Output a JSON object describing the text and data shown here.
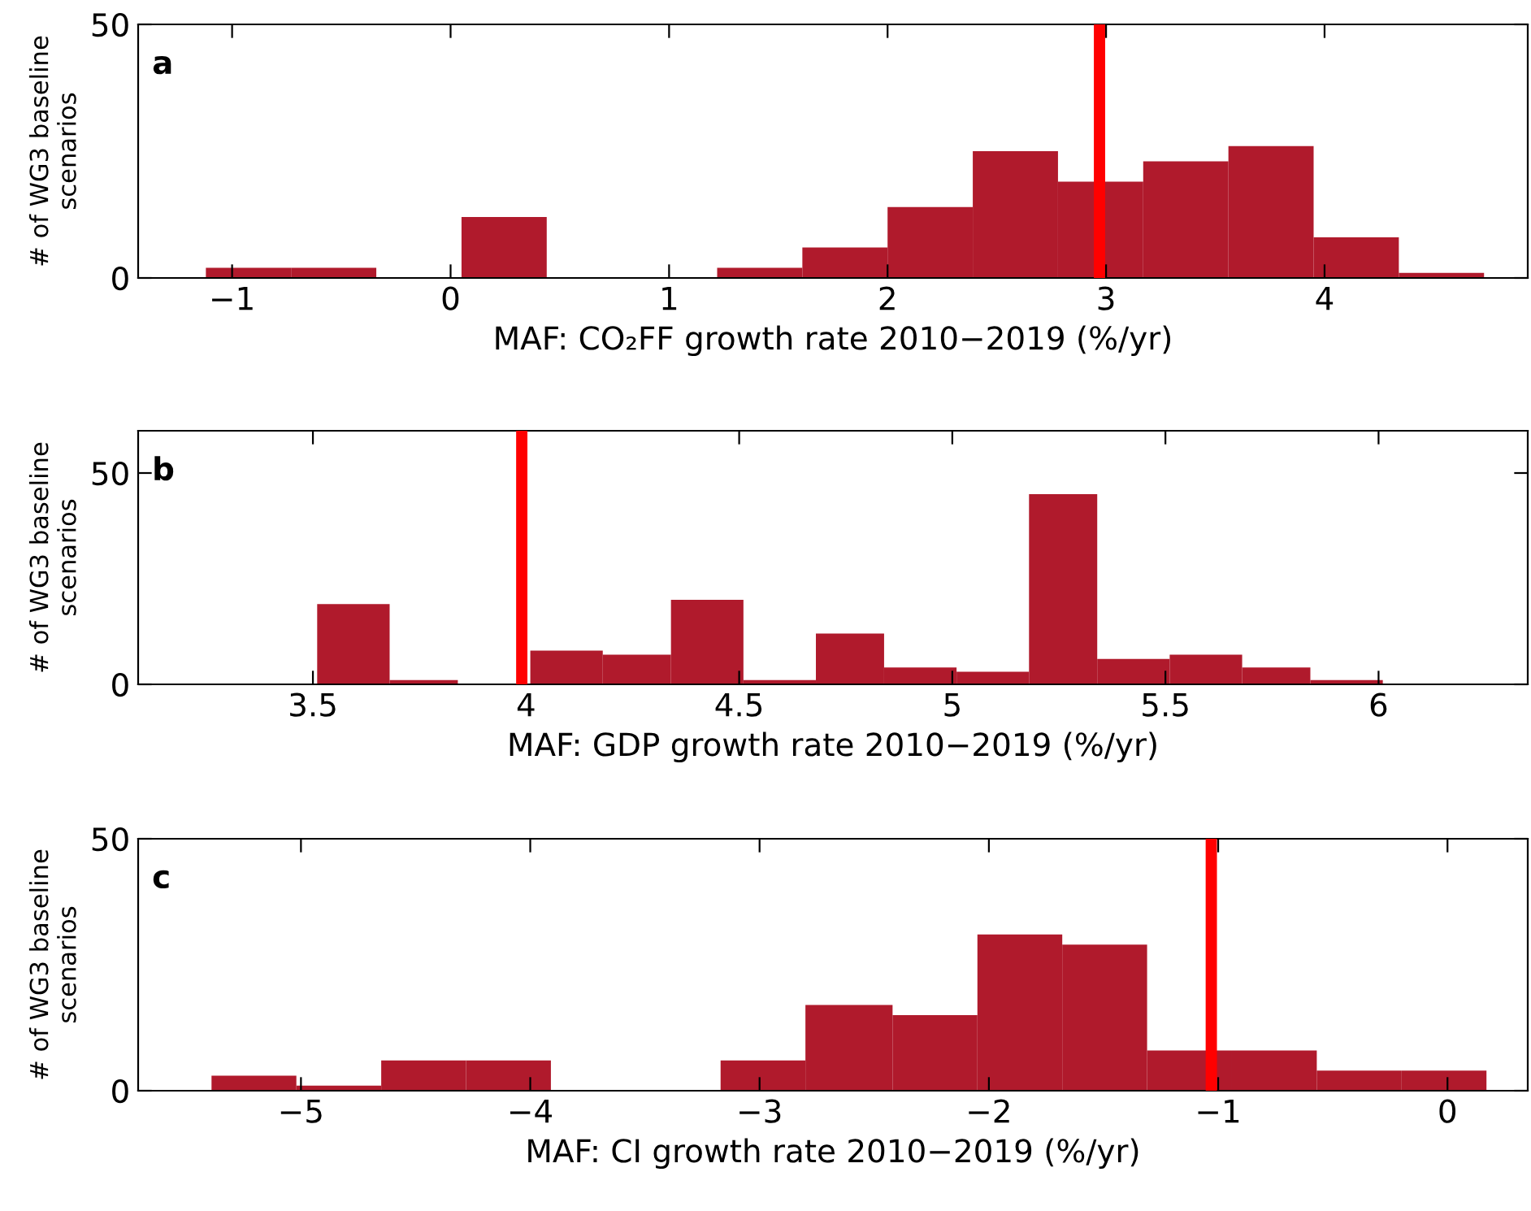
{
  "chart_data": [
    {
      "type": "histogram",
      "xlabel": "MAF: CO₂FF growth rate 2010−2019 (%/yr)",
      "ylabel": "# of WG3 baseline\nscenarios",
      "annotations": [
        "a"
      ],
      "bins": [
        -1.12,
        -0.73,
        -0.34,
        0.05,
        0.44,
        1.22,
        1.61,
        2.0,
        2.39,
        2.78,
        3.17,
        3.56,
        3.95,
        4.34,
        4.73
      ],
      "values": [
        2,
        2,
        0,
        12,
        0,
        2,
        6,
        14,
        25,
        19,
        23,
        26,
        8,
        1
      ],
      "color": "#b01a2c",
      "xlim": [
        -1.43,
        4.93
      ],
      "xticks": [
        {
          "value": -1,
          "label": "−1"
        },
        0,
        1,
        2,
        3,
        4
      ],
      "ylim": [
        0,
        50
      ],
      "yticks": [
        0,
        50
      ],
      "ref_lines": [
        {
          "axis": "x",
          "value": 2.97,
          "color": "#ff0000"
        }
      ],
      "grid": false
    },
    {
      "type": "histogram",
      "xlabel": "MAF: GDP growth rate 2010−2019 (%/yr)",
      "ylabel": "# of WG3 baseline\nscenarios",
      "annotations": [
        "b"
      ],
      "bins": [
        3.51,
        3.68,
        3.84,
        4.01,
        4.18,
        4.34,
        4.51,
        4.68,
        4.84,
        5.01,
        5.18,
        5.34,
        5.51,
        5.68,
        5.84,
        6.01
      ],
      "values": [
        19,
        1,
        0,
        8,
        7,
        20,
        1,
        12,
        4,
        3,
        45,
        6,
        7,
        4,
        1
      ],
      "color": "#b01a2c",
      "xlim": [
        3.09,
        6.35
      ],
      "xticks": [
        3.5,
        4,
        4.5,
        5,
        5.5,
        6
      ],
      "ylim": [
        0,
        60
      ],
      "yticks": [
        0,
        50
      ],
      "ref_lines": [
        {
          "axis": "x",
          "value": 3.99,
          "color": "#ff0000"
        }
      ],
      "grid": false
    },
    {
      "type": "histogram",
      "xlabel": "MAF: CI growth rate 2010−2019 (%/yr)",
      "ylabel": "# of WG3 baseline\nscenarios",
      "annotations": [
        "c"
      ],
      "bins": [
        -5.39,
        -5.02,
        -4.65,
        -4.28,
        -3.91,
        -3.17,
        -2.8,
        -2.42,
        -2.05,
        -1.68,
        -1.31,
        -0.94,
        -0.57,
        -0.2,
        0.17
      ],
      "values": [
        3,
        1,
        6,
        6,
        0,
        6,
        17,
        15,
        31,
        29,
        8,
        8,
        4,
        4
      ],
      "color": "#b01a2c",
      "xlim": [
        -5.71,
        0.35
      ],
      "xticks": [
        {
          "value": -5,
          "label": "−5"
        },
        {
          "value": -4,
          "label": "−4"
        },
        {
          "value": -3,
          "label": "−3"
        },
        {
          "value": -2,
          "label": "−2"
        },
        {
          "value": -1,
          "label": "−1"
        },
        0
      ],
      "ylim": [
        0,
        50
      ],
      "yticks": [
        0,
        50
      ],
      "ref_lines": [
        {
          "axis": "x",
          "value": -1.03,
          "color": "#ff0000"
        }
      ],
      "grid": false
    }
  ]
}
